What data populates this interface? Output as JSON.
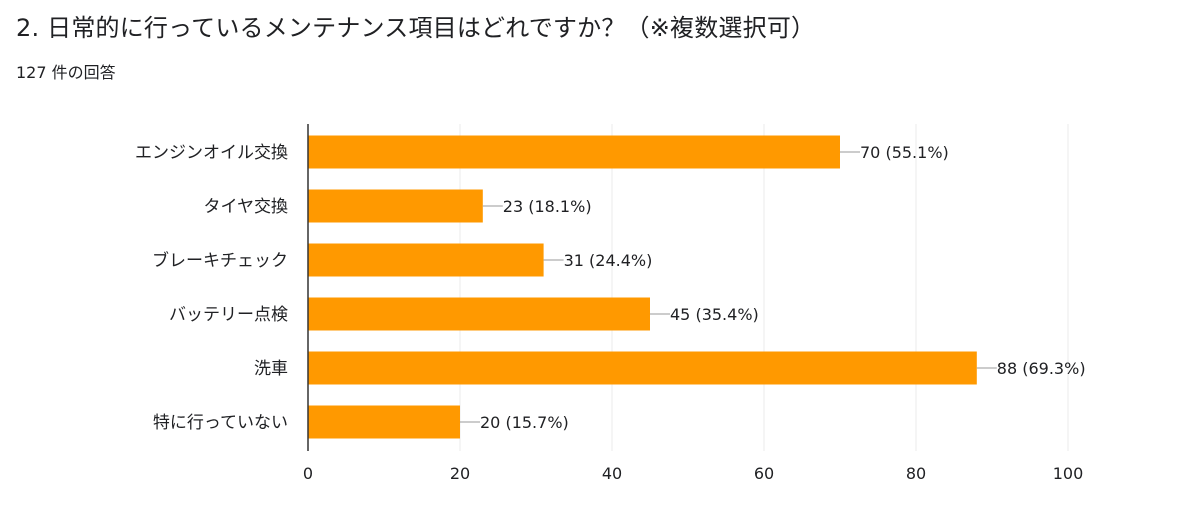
{
  "header": {
    "title": "2. 日常的に行っているメンテナンス項目はどれですか？（※複数選択可）",
    "response_count": "127 件の回答"
  },
  "colors": {
    "bar": "#ff9900",
    "axis": "#333333",
    "grid": "#ebebeb",
    "leader": "#999999",
    "text": "#202124"
  },
  "chart_data": {
    "type": "bar",
    "orientation": "horizontal",
    "categories": [
      "エンジンオイル交換",
      "タイヤ交換",
      "ブレーキチェック",
      "バッテリー点検",
      "洗車",
      "特に行っていない"
    ],
    "values": [
      70,
      23,
      31,
      45,
      88,
      20
    ],
    "data_labels": [
      "70 (55.1%)",
      "23 (18.1%)",
      "31 (24.4%)",
      "45 (35.4%)",
      "88 (69.3%)",
      "20 (15.7%)"
    ],
    "xlim": [
      0,
      100
    ],
    "x_ticks": [
      0,
      20,
      40,
      60,
      80,
      100
    ],
    "grid": true
  }
}
